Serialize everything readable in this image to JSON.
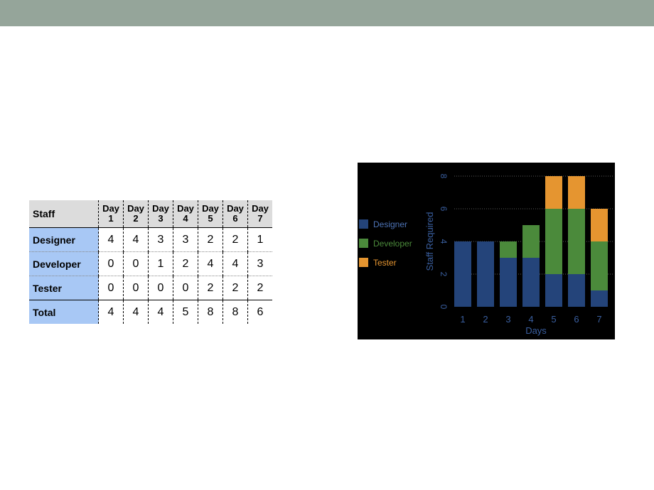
{
  "table": {
    "header": {
      "row_label": "Staff",
      "days": [
        [
          "Day",
          "1"
        ],
        [
          "Day",
          "2"
        ],
        [
          "Day",
          "3"
        ],
        [
          "Day",
          "4"
        ],
        [
          "Day",
          "5"
        ],
        [
          "Day",
          "6"
        ],
        [
          "Day",
          "7"
        ]
      ]
    },
    "rows": [
      {
        "label": "Designer",
        "values": [
          "4",
          "4",
          "3",
          "3",
          "2",
          "2",
          "1"
        ]
      },
      {
        "label": "Developer",
        "values": [
          "0",
          "0",
          "1",
          "2",
          "4",
          "4",
          "3"
        ]
      },
      {
        "label": "Tester",
        "values": [
          "0",
          "0",
          "0",
          "0",
          "2",
          "2",
          "2"
        ]
      },
      {
        "label": "Total",
        "values": [
          "4",
          "4",
          "4",
          "5",
          "8",
          "8",
          "6"
        ]
      }
    ]
  },
  "chart_data": {
    "type": "bar",
    "stacked": true,
    "categories": [
      "1",
      "2",
      "3",
      "4",
      "5",
      "6",
      "7"
    ],
    "series": [
      {
        "name": "Designer",
        "values": [
          4,
          4,
          3,
          3,
          2,
          2,
          1
        ],
        "color": "#24447a"
      },
      {
        "name": "Developer",
        "values": [
          0,
          0,
          1,
          2,
          4,
          4,
          3
        ],
        "color": "#4b8a3b"
      },
      {
        "name": "Tester",
        "values": [
          0,
          0,
          0,
          0,
          2,
          2,
          2
        ],
        "color": "#e59530"
      }
    ],
    "title": "",
    "xlabel": "Days",
    "ylabel": "Staff Required",
    "ylim": [
      0,
      8
    ],
    "yticks": [
      "0",
      "2",
      "4",
      "6",
      "8"
    ],
    "grid": true,
    "legend_position": "left",
    "background": "#000000",
    "text_color": "#3a5fa0"
  }
}
